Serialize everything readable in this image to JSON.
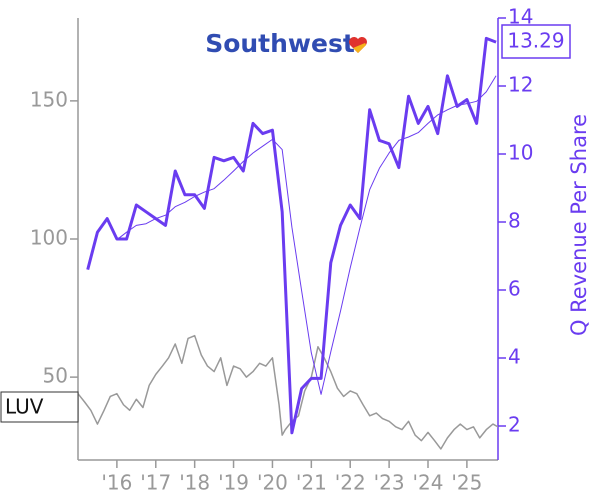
{
  "chart_data": {
    "type": "line",
    "logo_text": "Southwest",
    "ticker": "LUV",
    "y2label": "Q Revenue Per Share",
    "xlim": [
      2015,
      2025.8
    ],
    "xticks": [
      {
        "value": 2016,
        "label": "'16"
      },
      {
        "value": 2017,
        "label": "'17"
      },
      {
        "value": 2018,
        "label": "'18"
      },
      {
        "value": 2019,
        "label": "'19"
      },
      {
        "value": 2020,
        "label": "'20"
      },
      {
        "value": 2021,
        "label": "'21"
      },
      {
        "value": 2022,
        "label": "'22"
      },
      {
        "value": 2023,
        "label": "'23"
      },
      {
        "value": 2024,
        "label": "'24"
      },
      {
        "value": 2025,
        "label": "'25"
      }
    ],
    "ylim": [
      20,
      180
    ],
    "yticks": [
      50,
      100,
      150
    ],
    "y2lim": [
      1,
      14
    ],
    "y2ticks": [
      2,
      4,
      6,
      8,
      10,
      12,
      14
    ],
    "grid": false,
    "series": [
      {
        "color": "#999999",
        "linewidth": 1.5,
        "x": [
          2015.0,
          2015.17,
          2015.33,
          2015.5,
          2015.67,
          2015.83,
          2016.0,
          2016.17,
          2016.33,
          2016.5,
          2016.67,
          2016.83,
          2017.0,
          2017.17,
          2017.33,
          2017.5,
          2017.67,
          2017.83,
          2018.0,
          2018.17,
          2018.33,
          2018.5,
          2018.67,
          2018.83,
          2019.0,
          2019.17,
          2019.33,
          2019.5,
          2019.67,
          2019.83,
          2020.0,
          2020.17,
          2020.25,
          2020.33,
          2020.5,
          2020.67,
          2020.83,
          2021.0,
          2021.17,
          2021.33,
          2021.5,
          2021.67,
          2021.83,
          2022.0,
          2022.17,
          2022.33,
          2022.5,
          2022.67,
          2022.83,
          2023.0,
          2023.17,
          2023.33,
          2023.5,
          2023.67,
          2023.83,
          2024.0,
          2024.17,
          2024.33,
          2024.5,
          2024.67,
          2024.83,
          2025.0,
          2025.17,
          2025.33,
          2025.5,
          2025.67,
          2025.8
        ],
        "values": [
          44,
          41,
          38,
          33,
          38,
          43,
          44,
          40,
          38,
          42,
          39,
          47,
          51,
          54,
          57,
          62,
          55,
          64,
          65,
          58,
          54,
          52,
          57,
          47,
          54,
          53,
          50,
          52,
          55,
          54,
          57,
          40,
          29,
          31,
          34,
          36,
          45,
          50,
          61,
          57,
          52,
          46,
          43,
          45,
          44,
          40,
          36,
          37,
          35,
          34,
          32,
          31,
          34,
          29,
          27,
          30,
          27,
          24,
          28,
          31,
          33,
          31,
          32,
          28,
          31,
          33,
          32
        ]
      },
      {
        "color": "#6a3cf0",
        "axis": "y2",
        "linewidth": 3,
        "x": [
          2015.25,
          2015.5,
          2015.75,
          2016.0,
          2016.25,
          2016.5,
          2016.75,
          2017.0,
          2017.25,
          2017.5,
          2017.75,
          2018.0,
          2018.25,
          2018.5,
          2018.75,
          2019.0,
          2019.25,
          2019.5,
          2019.75,
          2020.0,
          2020.25,
          2020.5,
          2020.75,
          2021.0,
          2021.25,
          2021.5,
          2021.75,
          2022.0,
          2022.25,
          2022.5,
          2022.75,
          2023.0,
          2023.25,
          2023.5,
          2023.75,
          2024.0,
          2024.25,
          2024.5,
          2024.75,
          2025.0,
          2025.25,
          2025.5,
          2025.75
        ],
        "values": [
          6.6,
          7.7,
          8.1,
          7.5,
          7.5,
          8.5,
          8.3,
          8.1,
          7.9,
          9.5,
          8.8,
          8.8,
          8.4,
          9.9,
          9.8,
          9.9,
          9.5,
          10.9,
          10.6,
          10.7,
          8.3,
          1.8,
          3.1,
          3.4,
          3.4,
          6.8,
          7.9,
          8.5,
          8.1,
          11.3,
          10.4,
          10.3,
          9.6,
          11.7,
          10.9,
          11.4,
          10.6,
          12.3,
          11.4,
          11.6,
          10.9,
          13.4,
          13.29
        ]
      },
      {
        "color": "#6a3cf0",
        "axis": "y2",
        "linewidth": 1,
        "x": [
          2015.25,
          2015.5,
          2015.75,
          2016.0,
          2016.25,
          2016.5,
          2016.75,
          2017.0,
          2017.25,
          2017.5,
          2017.75,
          2018.0,
          2018.25,
          2018.5,
          2018.75,
          2019.0,
          2019.25,
          2019.5,
          2019.75,
          2020.0,
          2020.25,
          2020.5,
          2020.75,
          2021.0,
          2021.25,
          2021.5,
          2021.75,
          2022.0,
          2022.25,
          2022.5,
          2022.75,
          2023.0,
          2023.25,
          2023.5,
          2023.75,
          2024.0,
          2024.25,
          2024.5,
          2024.75,
          2025.0,
          2025.25,
          2025.5,
          2025.75
        ],
        "values": [
          null,
          null,
          null,
          7.48,
          7.7,
          7.9,
          7.95,
          8.1,
          8.2,
          8.45,
          8.58,
          8.75,
          8.88,
          8.98,
          9.23,
          9.5,
          9.78,
          10.03,
          10.23,
          10.43,
          10.13,
          7.85,
          5.98,
          4.15,
          2.93,
          4.18,
          5.38,
          6.65,
          7.83,
          8.95,
          9.58,
          10.03,
          10.4,
          10.5,
          10.63,
          10.9,
          11.15,
          11.3,
          11.43,
          11.48,
          11.55,
          11.83,
          12.3
        ]
      }
    ]
  }
}
